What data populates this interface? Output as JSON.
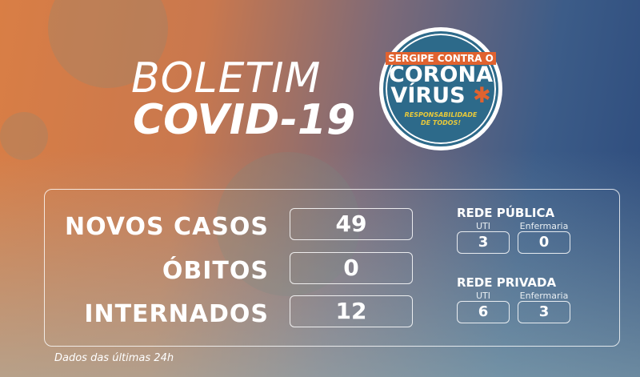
{
  "title": {
    "line1": "BOLETIM",
    "line2": "COVID-19"
  },
  "logo": {
    "line1": "SERGIPE CONTRA O",
    "line2": "CORONA",
    "line3": "VÍRUS",
    "tagline1": "RESPONSABILIDADE",
    "tagline2": "DE TODOS!"
  },
  "stats": [
    {
      "label": "NOVOS CASOS",
      "value": "49"
    },
    {
      "label": "ÓBITOS",
      "value": "0"
    },
    {
      "label": "INTERNADOS",
      "value": "12"
    }
  ],
  "networks": [
    {
      "name": "REDE PÚBLICA",
      "uti_label": "UTI",
      "uti": "3",
      "enf_label": "Enfermaria",
      "enf": "0"
    },
    {
      "name": "REDE PRIVADA",
      "uti_label": "UTI",
      "uti": "6",
      "enf_label": "Enfermaria",
      "enf": "3"
    }
  ],
  "footer": "Dados das últimas 24h",
  "colors": {
    "accent_orange": "#e0622f",
    "logo_blue": "#2d6a8a",
    "tagline_yellow": "#e8c93a"
  }
}
